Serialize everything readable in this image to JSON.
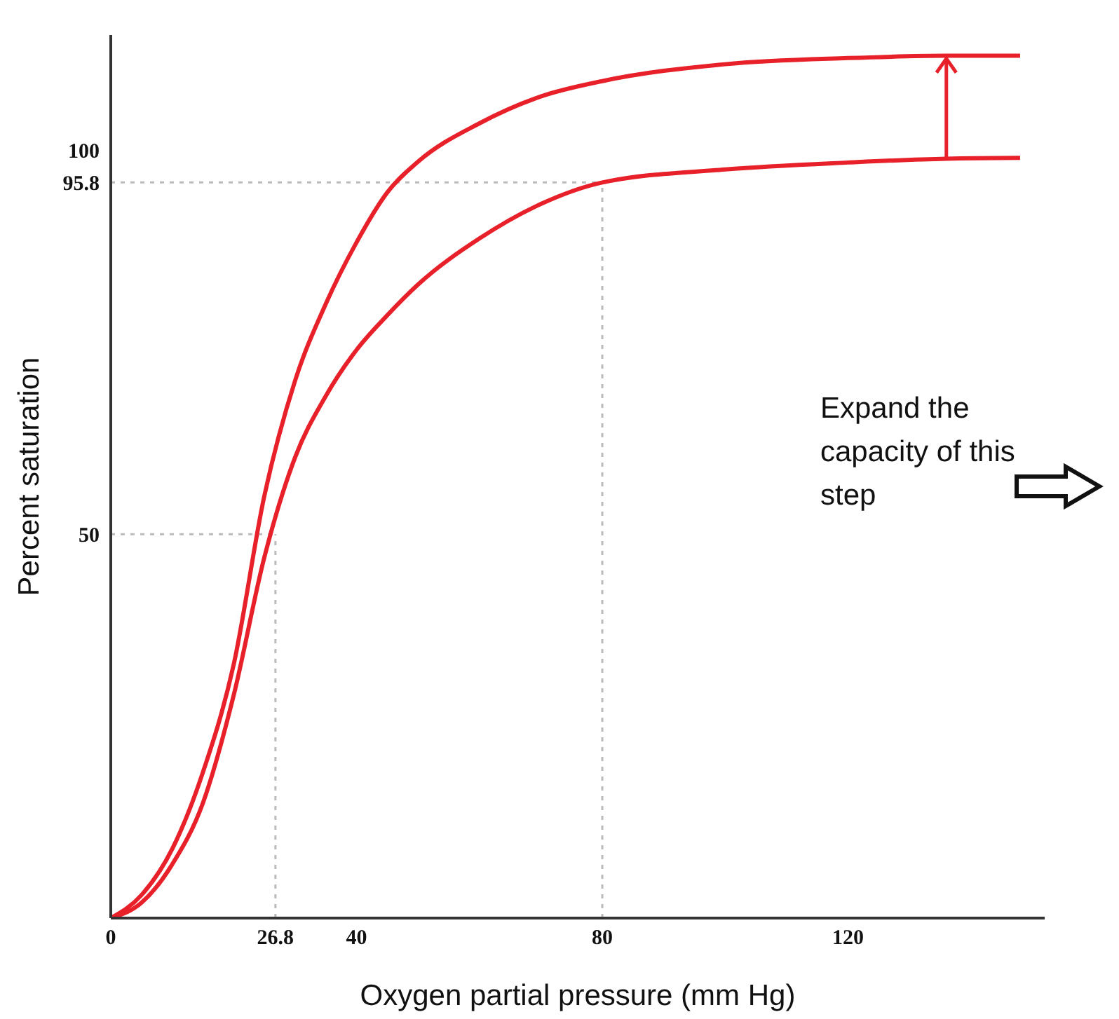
{
  "chart_data": {
    "type": "line",
    "xlabel": "Oxygen partial pressure (mm Hg)",
    "ylabel": "Percent saturation",
    "x": [
      0,
      5,
      10,
      15,
      20,
      25,
      30,
      35,
      40,
      45,
      50,
      60,
      70,
      80,
      100,
      120,
      136,
      148
    ],
    "series": [
      {
        "color": "#e8202a",
        "values": [
          0,
          3,
          9,
          19,
          33,
          55,
          70,
          80,
          88,
          94.5,
          98.5,
          103.5,
          107,
          109,
          111.2,
          112,
          112.3,
          112.3
        ]
      },
      {
        "color": "#e8202a",
        "values": [
          0,
          2,
          7,
          15,
          29,
          47,
          60,
          68,
          74,
          78.5,
          82.5,
          88.5,
          93,
          95.8,
          97.5,
          98.4,
          98.9,
          99
        ]
      }
    ],
    "xlim": [
      0,
      152
    ],
    "xticks": [
      0,
      26.8,
      40,
      80,
      120
    ],
    "ylim": [
      0,
      115
    ],
    "yticks": [
      50,
      95.8,
      100
    ],
    "ref_lines": [
      {
        "axis": "x",
        "value": 26.8,
        "color": "#bbbbbb",
        "line_style": "dotted"
      },
      {
        "axis": "x",
        "value": 80,
        "color": "#bbbbbb",
        "line_style": "dotted"
      },
      {
        "axis": "y",
        "value": 50,
        "color": "#bbbbbb",
        "line_style": "dotted"
      },
      {
        "axis": "y",
        "value": 95.8,
        "color": "#bbbbbb",
        "line_style": "dotted"
      }
    ],
    "annotations": [
      "Expand the capacity of this step"
    ],
    "grid": false,
    "legend": false,
    "marker": "none",
    "line_style": "solid"
  }
}
